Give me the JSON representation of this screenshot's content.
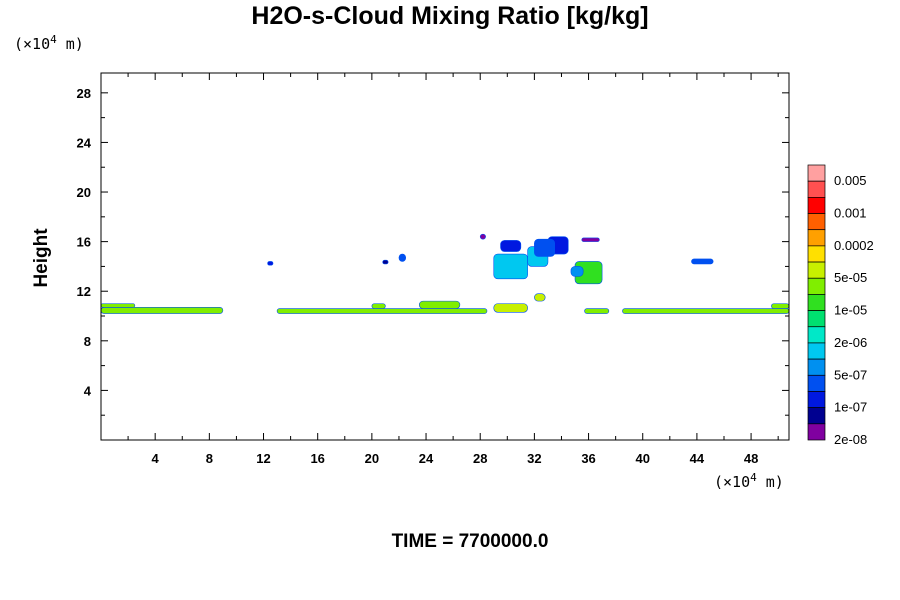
{
  "chart_data": {
    "type": "heatmap",
    "title": "H2O-s-Cloud Mixing Ratio [kg/kg]",
    "xlabel": "",
    "ylabel": "Height",
    "x_unit": "(×10",
    "x_unit_exp": "4",
    "x_unit_tail": " m)",
    "y_unit": "(×10",
    "y_unit_exp": "4",
    "y_unit_tail": " m)",
    "xlim": [
      0,
      50.8
    ],
    "ylim": [
      0,
      29.6
    ],
    "x_ticks": [
      4,
      8,
      12,
      16,
      20,
      24,
      28,
      32,
      36,
      40,
      44,
      48
    ],
    "y_ticks": [
      4,
      8,
      12,
      16,
      20,
      24,
      28
    ],
    "footer": "TIME = 7700000.0",
    "colorbar": {
      "labels": [
        "0.005",
        "0.001",
        "0.0002",
        "5e-05",
        "1e-05",
        "2e-06",
        "5e-07",
        "1e-07",
        "2e-08"
      ],
      "colors": [
        "#ffa0a0",
        "#ff5050",
        "#ff0000",
        "#ff6000",
        "#ffa000",
        "#ffe000",
        "#c8f000",
        "#80ee00",
        "#30e020",
        "#00e070",
        "#00e8c8",
        "#00c8f0",
        "#0090f0",
        "#0050f0",
        "#0018e0",
        "#000090",
        "#8000a0"
      ]
    },
    "regions": [
      {
        "x0": 0.0,
        "x1": 9.0,
        "y0": 10.2,
        "y1": 10.7,
        "level": 7
      },
      {
        "x0": 0.0,
        "x1": 2.5,
        "y0": 10.7,
        "y1": 11.0,
        "level": 7
      },
      {
        "x0": 13.0,
        "x1": 28.5,
        "y0": 10.2,
        "y1": 10.6,
        "level": 7
      },
      {
        "x0": 20.0,
        "x1": 21.0,
        "y0": 10.6,
        "y1": 11.0,
        "level": 7
      },
      {
        "x0": 23.5,
        "x1": 26.5,
        "y0": 10.6,
        "y1": 11.2,
        "level": 7
      },
      {
        "x0": 29.0,
        "x1": 31.5,
        "y0": 10.3,
        "y1": 11.0,
        "level": 6
      },
      {
        "x0": 32.0,
        "x1": 32.8,
        "y0": 11.2,
        "y1": 11.8,
        "level": 6
      },
      {
        "x0": 35.7,
        "x1": 37.5,
        "y0": 10.2,
        "y1": 10.6,
        "level": 7
      },
      {
        "x0": 38.5,
        "x1": 50.8,
        "y0": 10.2,
        "y1": 10.6,
        "level": 7
      },
      {
        "x0": 49.5,
        "x1": 50.8,
        "y0": 10.6,
        "y1": 11.0,
        "level": 7
      },
      {
        "x0": 29.0,
        "x1": 31.5,
        "y0": 13.0,
        "y1": 15.0,
        "level": 11
      },
      {
        "x0": 31.5,
        "x1": 33.0,
        "y0": 14.0,
        "y1": 15.6,
        "level": 11
      },
      {
        "x0": 33.0,
        "x1": 34.5,
        "y0": 15.0,
        "y1": 16.4,
        "level": 14
      },
      {
        "x0": 29.5,
        "x1": 31.0,
        "y0": 15.2,
        "y1": 16.1,
        "level": 14
      },
      {
        "x0": 32.0,
        "x1": 33.5,
        "y0": 14.8,
        "y1": 16.2,
        "level": 13
      },
      {
        "x0": 35.0,
        "x1": 37.0,
        "y0": 12.6,
        "y1": 14.4,
        "level": 8
      },
      {
        "x0": 34.7,
        "x1": 35.6,
        "y0": 13.2,
        "y1": 14.0,
        "level": 12
      },
      {
        "x0": 43.6,
        "x1": 45.2,
        "y0": 14.2,
        "y1": 14.6,
        "level": 13
      },
      {
        "x0": 22.0,
        "x1": 22.5,
        "y0": 14.4,
        "y1": 15.0,
        "level": 13
      },
      {
        "x0": 12.3,
        "x1": 12.7,
        "y0": 14.1,
        "y1": 14.4,
        "level": 14
      },
      {
        "x0": 20.8,
        "x1": 21.2,
        "y0": 14.2,
        "y1": 14.5,
        "level": 15
      },
      {
        "x0": 28.0,
        "x1": 28.4,
        "y0": 16.2,
        "y1": 16.6,
        "level": 16
      },
      {
        "x0": 35.5,
        "x1": 36.8,
        "y0": 16.0,
        "y1": 16.3,
        "level": 16
      }
    ]
  }
}
